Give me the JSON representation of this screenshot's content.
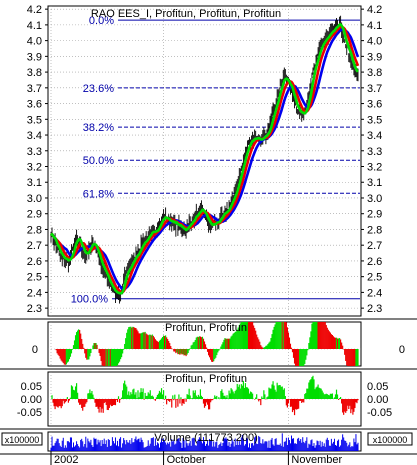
{
  "chart_data": [
    {
      "type": "line",
      "panel": "price",
      "title": "RAO EES_I, Profitun, Profitun, Profitun",
      "ylim": [
        2.25,
        4.22
      ],
      "y_ticks": [
        "4.2",
        "4.1",
        "4.0",
        "3.9",
        "3.8",
        "3.7",
        "3.6",
        "3.5",
        "3.4",
        "3.3",
        "3.2",
        "3.1",
        "3.0",
        "2.9",
        "2.8",
        "2.7",
        "2.6",
        "2.5",
        "2.4",
        "2.3"
      ],
      "y_tick_values": [
        4.2,
        4.1,
        4.0,
        3.9,
        3.8,
        3.7,
        3.6,
        3.5,
        3.4,
        3.3,
        3.2,
        3.1,
        3.0,
        2.9,
        2.8,
        2.7,
        2.6,
        2.5,
        2.4,
        2.3
      ],
      "x_tick_labels": [
        "2002",
        "October",
        "November"
      ],
      "x_tick_index": [
        0,
        110,
        232
      ],
      "fib_levels": [
        {
          "label": "0.0%",
          "value": 4.13
        },
        {
          "label": "23.6%",
          "value": 3.7
        },
        {
          "label": "38.2%",
          "value": 3.45
        },
        {
          "label": "50.0%",
          "value": 3.24
        },
        {
          "label": "61.8%",
          "value": 3.03
        },
        {
          "label": "100.0%",
          "value": 2.36
        }
      ],
      "close": {
        "anchor_index": [
          0,
          10,
          18,
          25,
          33,
          42,
          50,
          56,
          62,
          68,
          73,
          80,
          90,
          100,
          110,
          118,
          125,
          132,
          140,
          148,
          156,
          163,
          170,
          177,
          185,
          190,
          196,
          204,
          210,
          216,
          222,
          228,
          234,
          240,
          246,
          250,
          256,
          260,
          264,
          270,
          276,
          282,
          286,
          290,
          295,
          300
        ],
        "anchor_value": [
          2.78,
          2.62,
          2.6,
          2.75,
          2.64,
          2.72,
          2.56,
          2.48,
          2.4,
          2.38,
          2.52,
          2.6,
          2.72,
          2.78,
          2.88,
          2.85,
          2.82,
          2.8,
          2.88,
          2.92,
          2.82,
          2.85,
          2.9,
          2.98,
          3.15,
          3.3,
          3.38,
          3.36,
          3.4,
          3.52,
          3.66,
          3.78,
          3.7,
          3.58,
          3.52,
          3.6,
          3.8,
          3.88,
          3.98,
          4.02,
          4.06,
          4.12,
          4.0,
          3.95,
          3.82,
          3.78
        ],
        "points": 301
      },
      "ma_periods": [
        5,
        10,
        16
      ],
      "series": [
        {
          "name": "",
          "color": "#00dd00"
        },
        {
          "name": "",
          "color": "#ee0000"
        },
        {
          "name": "",
          "color": "#0000ee"
        }
      ]
    },
    {
      "type": "bar",
      "panel": "oscillator-1",
      "title": "Profitun, Profitun",
      "y_ticks": [
        "0"
      ],
      "y_tick_values": [
        0
      ]
    },
    {
      "type": "bar",
      "panel": "oscillator-2",
      "title": "Profitun, Profitun",
      "y_ticks": [
        "0.05",
        "0.00",
        "-0.05"
      ],
      "y_tick_values": [
        0.05,
        0.0,
        -0.05
      ]
    },
    {
      "type": "bar",
      "panel": "volume",
      "title": "Volume (111773.200)",
      "multiplier_label": "x100000",
      "color": "#0000ee"
    }
  ]
}
